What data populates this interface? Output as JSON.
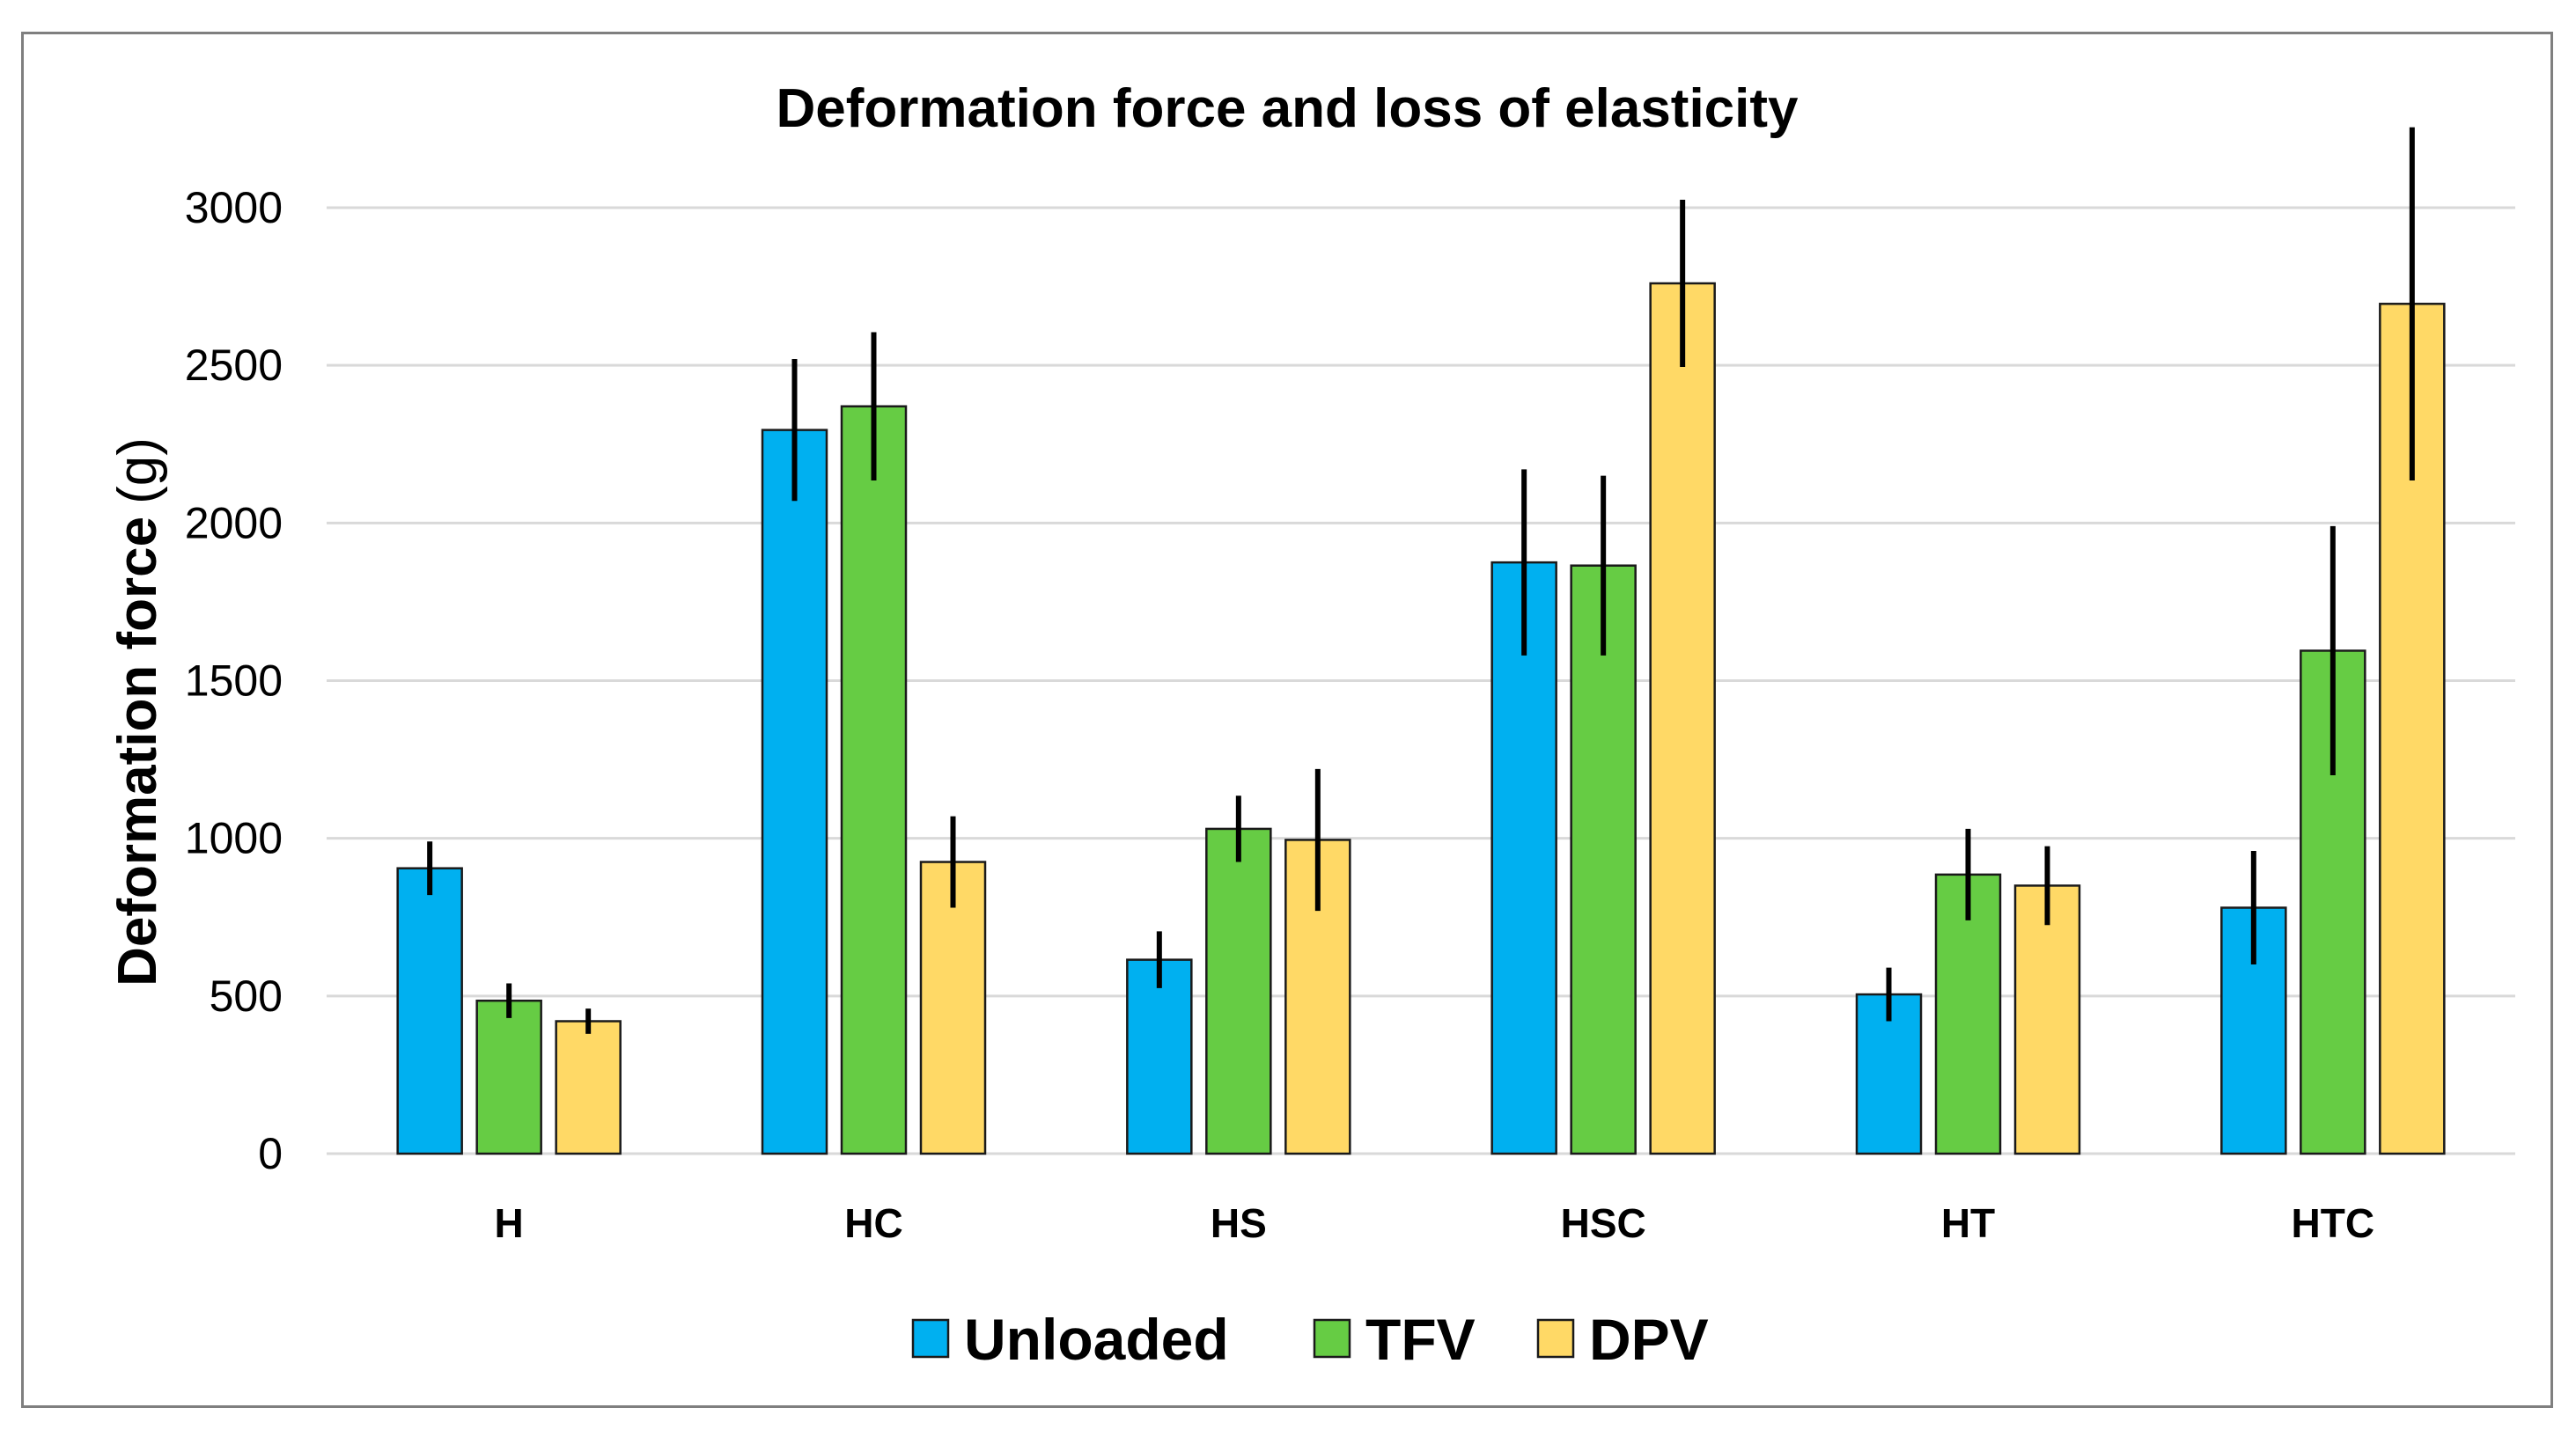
{
  "chart_data": {
    "type": "bar",
    "title": "Deformation force and loss of elasticity",
    "xlabel": "",
    "ylabel": "Deformation force",
    "ylabel_unit": "(g)",
    "ylim": [
      0,
      3000
    ],
    "yticks": [
      0,
      500,
      1000,
      1500,
      2000,
      2500,
      3000
    ],
    "grid": true,
    "legend_position": "bottom",
    "categories": [
      "H",
      "HC",
      "HS",
      "HSC",
      "HT",
      "HTC"
    ],
    "series": [
      {
        "name": "Unloaded",
        "color": "#00b0f0",
        "values": [
          905,
          2295,
          615,
          1875,
          505,
          780
        ],
        "error": [
          85,
          225,
          90,
          295,
          85,
          180
        ]
      },
      {
        "name": "TFV",
        "color": "#66cc44",
        "values": [
          485,
          2370,
          1030,
          1865,
          885,
          1595
        ],
        "error": [
          55,
          235,
          105,
          285,
          145,
          395
        ]
      },
      {
        "name": "DPV",
        "color": "#ffd966",
        "values": [
          420,
          925,
          995,
          2760,
          850,
          2695
        ],
        "error": [
          40,
          145,
          225,
          265,
          125,
          560
        ]
      }
    ]
  }
}
